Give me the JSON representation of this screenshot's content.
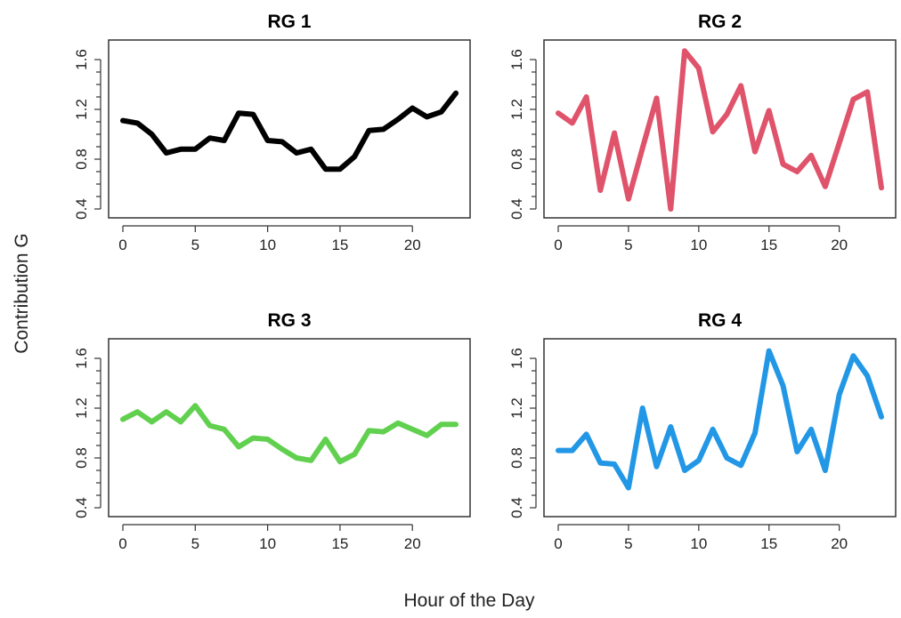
{
  "chart_data": [
    {
      "type": "line",
      "title": "RG 1",
      "color": "#000000",
      "x": [
        0,
        1,
        2,
        3,
        4,
        5,
        6,
        7,
        8,
        9,
        10,
        11,
        12,
        13,
        14,
        15,
        16,
        17,
        18,
        19,
        20,
        21,
        22,
        23
      ],
      "values": [
        1.11,
        1.09,
        1.0,
        0.85,
        0.88,
        0.88,
        0.97,
        0.95,
        1.17,
        1.16,
        0.95,
        0.94,
        0.85,
        0.88,
        0.72,
        0.72,
        0.82,
        1.03,
        1.04,
        1.12,
        1.21,
        1.14,
        1.18,
        1.33
      ],
      "xlim": [
        0,
        23
      ],
      "ylim": [
        0.4,
        1.6
      ],
      "xticks": [
        0,
        5,
        10,
        15,
        20
      ],
      "yticks": [
        0.4,
        0.8,
        1.2,
        1.6
      ],
      "xtick_labels": [
        "0",
        "5",
        "10",
        "15",
        "20"
      ],
      "ytick_labels": [
        "0.4",
        "0.8",
        "1.2",
        "1.6"
      ]
    },
    {
      "type": "line",
      "title": "RG 2",
      "color": "#DF536B",
      "x": [
        0,
        1,
        2,
        3,
        4,
        5,
        6,
        7,
        8,
        9,
        10,
        11,
        12,
        13,
        14,
        15,
        16,
        17,
        18,
        19,
        20,
        21,
        22,
        23
      ],
      "values": [
        1.17,
        1.09,
        1.3,
        0.55,
        1.01,
        0.48,
        0.89,
        1.29,
        0.4,
        1.67,
        1.53,
        1.02,
        1.16,
        1.39,
        0.86,
        1.19,
        0.76,
        0.7,
        0.83,
        0.58,
        0.93,
        1.28,
        1.34,
        0.57
      ],
      "xlim": [
        0,
        23
      ],
      "ylim": [
        0.4,
        1.6
      ],
      "xticks": [
        0,
        5,
        10,
        15,
        20
      ],
      "yticks": [
        0.4,
        0.8,
        1.2,
        1.6
      ],
      "xtick_labels": [
        "0",
        "5",
        "10",
        "15",
        "20"
      ],
      "ytick_labels": [
        "0.4",
        "0.8",
        "1.2",
        "1.6"
      ]
    },
    {
      "type": "line",
      "title": "RG 3",
      "color": "#61D04F",
      "x": [
        0,
        1,
        2,
        3,
        4,
        5,
        6,
        7,
        8,
        9,
        10,
        11,
        12,
        13,
        14,
        15,
        16,
        17,
        18,
        19,
        20,
        21,
        22,
        23
      ],
      "values": [
        1.11,
        1.17,
        1.09,
        1.17,
        1.09,
        1.22,
        1.06,
        1.03,
        0.89,
        0.96,
        0.95,
        0.87,
        0.8,
        0.78,
        0.95,
        0.77,
        0.83,
        1.02,
        1.01,
        1.08,
        1.03,
        0.98,
        1.07,
        1.07
      ],
      "xlim": [
        0,
        23
      ],
      "ylim": [
        0.4,
        1.6
      ],
      "xticks": [
        0,
        5,
        10,
        15,
        20
      ],
      "yticks": [
        0.4,
        0.8,
        1.2,
        1.6
      ],
      "xtick_labels": [
        "0",
        "5",
        "10",
        "15",
        "20"
      ],
      "ytick_labels": [
        "0.4",
        "0.8",
        "1.2",
        "1.6"
      ]
    },
    {
      "type": "line",
      "title": "RG 4",
      "color": "#2297E6",
      "x": [
        0,
        1,
        2,
        3,
        4,
        5,
        6,
        7,
        8,
        9,
        10,
        11,
        12,
        13,
        14,
        15,
        16,
        17,
        18,
        19,
        20,
        21,
        22,
        23
      ],
      "values": [
        0.86,
        0.86,
        0.99,
        0.76,
        0.75,
        0.56,
        1.2,
        0.73,
        1.05,
        0.7,
        0.78,
        1.03,
        0.8,
        0.74,
        1.0,
        1.66,
        1.38,
        0.85,
        1.03,
        0.7,
        1.31,
        1.62,
        1.46,
        1.13
      ],
      "xlim": [
        0,
        23
      ],
      "ylim": [
        0.4,
        1.6
      ],
      "xticks": [
        0,
        5,
        10,
        15,
        20
      ],
      "yticks": [
        0.4,
        0.8,
        1.2,
        1.6
      ],
      "xtick_labels": [
        "0",
        "5",
        "10",
        "15",
        "20"
      ],
      "ytick_labels": [
        "0.4",
        "0.8",
        "1.2",
        "1.6"
      ]
    }
  ],
  "shared_xlabel": "Hour of the Day",
  "shared_ylabel": "Contribution G"
}
